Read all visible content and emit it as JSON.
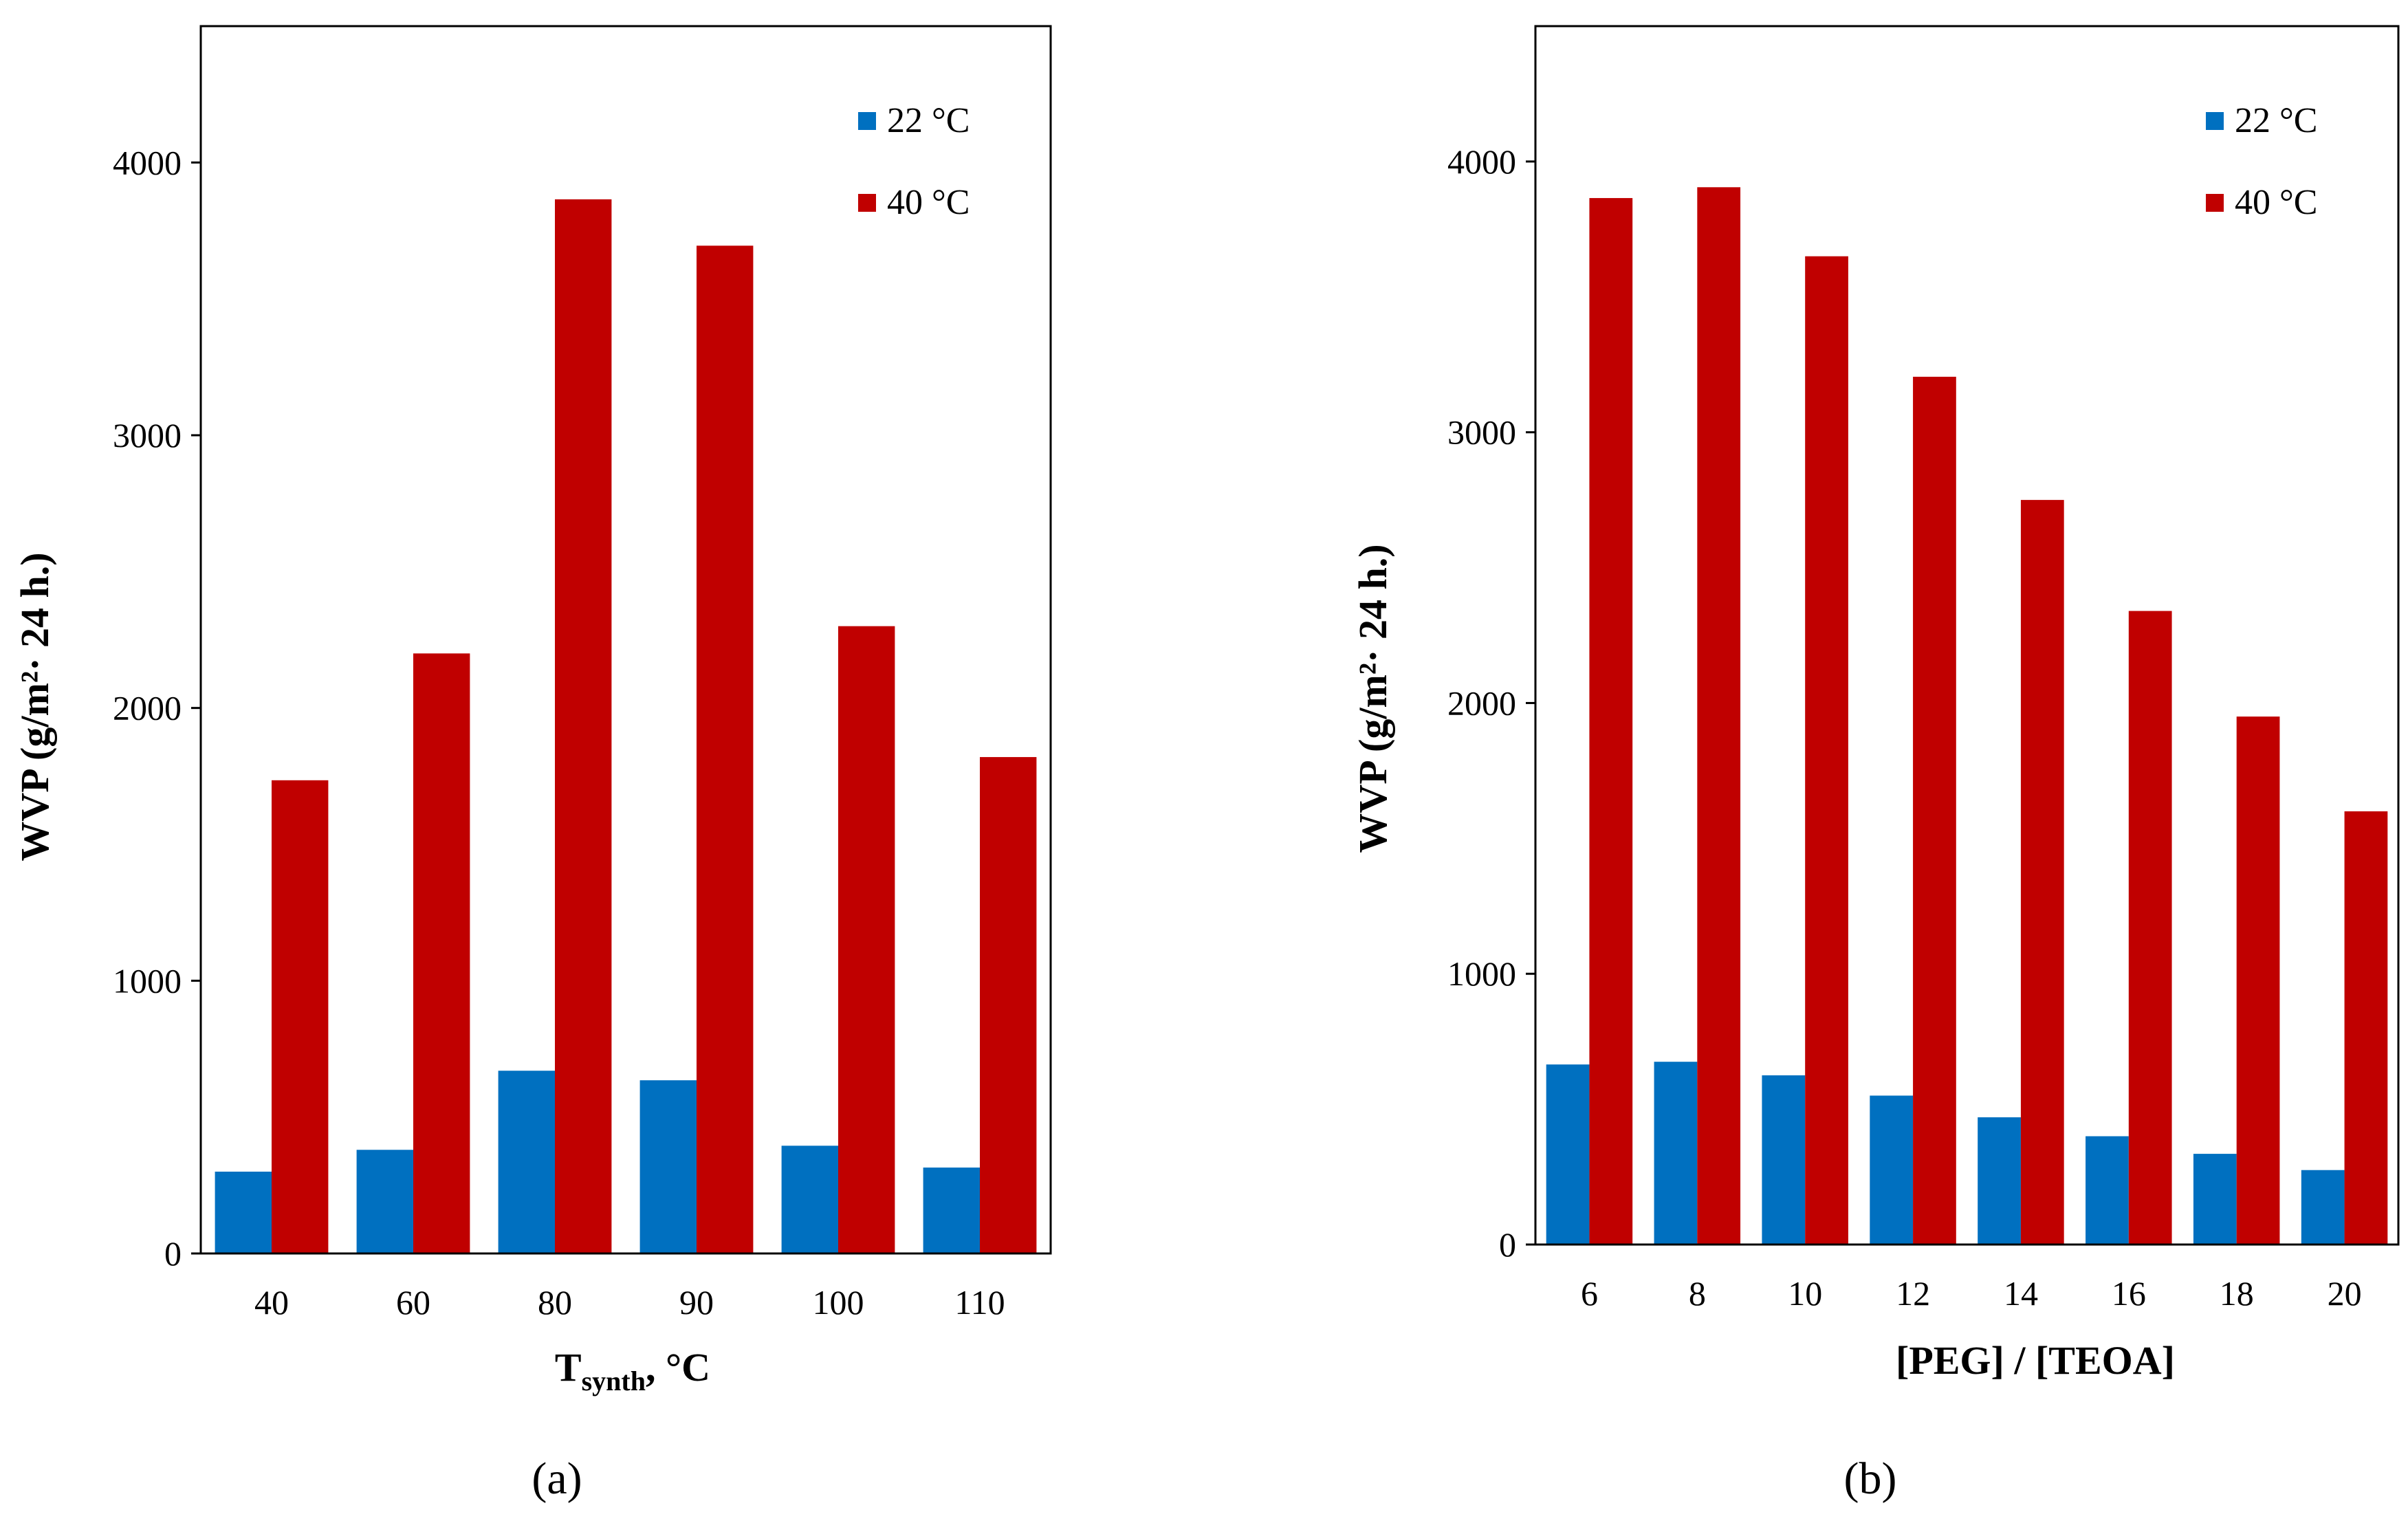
{
  "figure": {
    "panel_a_label": "a",
    "panel_b_label": "b"
  },
  "colors": {
    "series_22": "#0070C0",
    "series_40": "#C00000",
    "axis": "#000000"
  },
  "chart_data": [
    {
      "type": "bar",
      "panel": "a",
      "categories": [
        "40",
        "60",
        "80",
        "90",
        "100",
        "110"
      ],
      "series": [
        {
          "name": "22 °C",
          "values": [
            300,
            380,
            670,
            635,
            395,
            315
          ]
        },
        {
          "name": "40 °C",
          "values": [
            1735,
            2200,
            3865,
            3695,
            2300,
            1820
          ]
        }
      ],
      "ylabel": "WVP  (g/m²· 24 h.)",
      "xlabel_main": "T",
      "xlabel_sub": "synth",
      "xlabel_tail": ", °C",
      "ylim": [
        0,
        4500
      ],
      "yticks": [
        "0",
        "1000",
        "2000",
        "3000",
        "4000"
      ],
      "grid": false,
      "legend_position": "top-right"
    },
    {
      "type": "bar",
      "panel": "b",
      "categories": [
        "6",
        "8",
        "10",
        "12",
        "14",
        "16",
        "18",
        "20"
      ],
      "series": [
        {
          "name": "22 °C",
          "values": [
            665,
            675,
            625,
            550,
            470,
            400,
            335,
            275
          ]
        },
        {
          "name": "40 °C",
          "values": [
            3865,
            3905,
            3650,
            3205,
            2750,
            2340,
            1950,
            1600
          ]
        }
      ],
      "ylabel": "WVP  (g/m²· 24 h.)",
      "xlabel": "[PEG] / [TEOA]",
      "ylim": [
        0,
        4500
      ],
      "yticks": [
        "0",
        "1000",
        "2000",
        "3000",
        "4000"
      ],
      "grid": false,
      "legend_position": "top-right"
    }
  ]
}
